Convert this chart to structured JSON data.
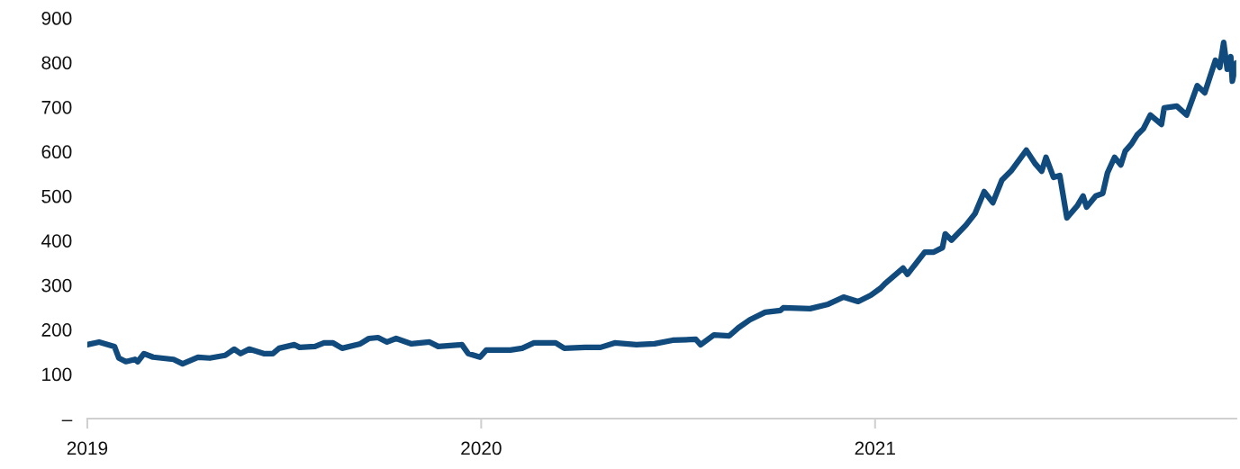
{
  "chart_data": {
    "type": "line",
    "xlim": [
      2019.0,
      2021.917
    ],
    "xticks": [
      2019,
      2020,
      2021
    ],
    "ylim": [
      0,
      900
    ],
    "yticks": [
      {
        "value": 0,
        "label": "–"
      },
      100,
      200,
      300,
      400,
      500,
      600,
      700,
      800,
      900
    ],
    "grid": false,
    "legend": false,
    "marker": "none",
    "line_style": "solid",
    "series": [
      {
        "color": "#114b7d",
        "x": [
          2019.0,
          2019.03,
          2019.069,
          2019.08,
          2019.098,
          2019.121,
          2019.128,
          2019.144,
          2019.167,
          2019.219,
          2019.242,
          2019.281,
          2019.311,
          2019.35,
          2019.373,
          2019.389,
          2019.411,
          2019.448,
          2019.471,
          2019.487,
          2019.526,
          2019.539,
          2019.578,
          2019.601,
          2019.624,
          2019.647,
          2019.693,
          2019.715,
          2019.738,
          2019.761,
          2019.784,
          2019.823,
          2019.869,
          2019.891,
          2019.951,
          2019.967,
          2019.997,
          2020.013,
          2020.074,
          2020.104,
          2020.134,
          2020.189,
          2020.211,
          2020.264,
          2020.303,
          2020.339,
          2020.394,
          2020.44,
          2020.486,
          2020.545,
          2020.557,
          2020.591,
          2020.63,
          2020.653,
          2020.682,
          2020.721,
          2020.76,
          2020.767,
          2020.835,
          2020.881,
          2020.92,
          2020.957,
          2020.989,
          2021.014,
          2021.025,
          2021.071,
          2021.082,
          2021.126,
          2021.149,
          2021.171,
          2021.178,
          2021.194,
          2021.231,
          2021.254,
          2021.277,
          2021.299,
          2021.322,
          2021.345,
          2021.384,
          2021.407,
          2021.423,
          2021.434,
          2021.453,
          2021.469,
          2021.487,
          2021.514,
          2021.528,
          2021.537,
          2021.56,
          2021.578,
          2021.59,
          2021.608,
          2021.624,
          2021.635,
          2021.651,
          2021.665,
          2021.681,
          2021.699,
          2021.727,
          2021.734,
          2021.766,
          2021.791,
          2021.818,
          2021.837,
          2021.864,
          2021.875,
          2021.885,
          2021.894,
          2021.903,
          2021.907,
          2021.917
        ],
        "values": [
          166,
          172,
          162,
          136,
          128,
          133,
          128,
          146,
          138,
          133,
          123,
          138,
          136,
          142,
          156,
          146,
          156,
          146,
          146,
          158,
          166,
          160,
          162,
          170,
          170,
          158,
          168,
          180,
          182,
          172,
          180,
          168,
          172,
          162,
          166,
          146,
          138,
          154,
          154,
          158,
          170,
          170,
          158,
          160,
          160,
          170,
          166,
          168,
          176,
          178,
          166,
          188,
          186,
          204,
          222,
          239,
          243,
          249,
          247,
          257,
          273,
          263,
          277,
          293,
          303,
          338,
          324,
          374,
          374,
          384,
          415,
          401,
          435,
          461,
          510,
          485,
          536,
          556,
          603,
          572,
          556,
          587,
          542,
          546,
          451,
          479,
          500,
          475,
          500,
          506,
          552,
          587,
          570,
          601,
          617,
          637,
          651,
          682,
          661,
          698,
          702,
          682,
          748,
          732,
          805,
          789,
          845,
          785,
          813,
          758,
          799
        ]
      }
    ]
  }
}
